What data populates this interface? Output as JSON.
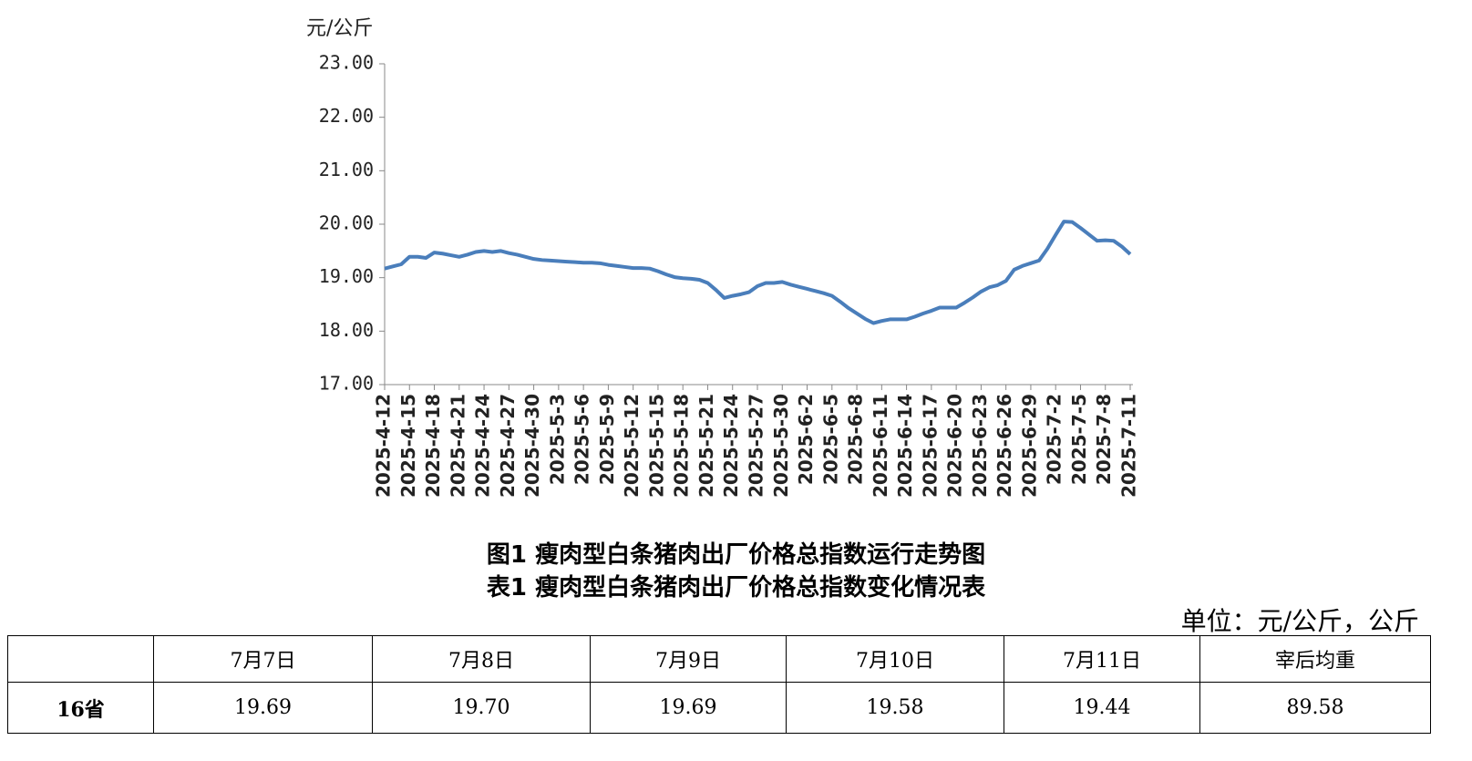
{
  "chart_data": {
    "type": "line",
    "y_label": "元/公斤",
    "categories": [
      "2025-4-12",
      null,
      null,
      "2025-4-15",
      null,
      null,
      "2025-4-18",
      null,
      null,
      "2025-4-21",
      null,
      null,
      "2025-4-24",
      null,
      null,
      "2025-4-27",
      null,
      null,
      "2025-4-30",
      null,
      null,
      "2025-5-3",
      null,
      null,
      "2025-5-6",
      null,
      null,
      "2025-5-9",
      null,
      null,
      "2025-5-12",
      null,
      null,
      "2025-5-15",
      null,
      null,
      "2025-5-18",
      null,
      null,
      "2025-5-21",
      null,
      null,
      "2025-5-24",
      null,
      null,
      "2025-5-27",
      null,
      null,
      "2025-5-30",
      null,
      null,
      "2025-6-2",
      null,
      null,
      "2025-6-5",
      null,
      null,
      "2025-6-8",
      null,
      null,
      "2025-6-11",
      null,
      null,
      "2025-6-14",
      null,
      null,
      "2025-6-17",
      null,
      null,
      "2025-6-20",
      null,
      null,
      "2025-6-23",
      null,
      null,
      "2025-6-26",
      null,
      null,
      "2025-6-29",
      null,
      null,
      "2025-7-2",
      null,
      null,
      "2025-7-5",
      null,
      null,
      "2025-7-8",
      null,
      null,
      "2025-7-11"
    ],
    "values": [
      19.17,
      19.21,
      19.25,
      19.39,
      19.39,
      19.37,
      19.47,
      19.45,
      19.42,
      19.39,
      19.43,
      19.48,
      19.5,
      19.48,
      19.5,
      19.46,
      19.43,
      19.39,
      19.35,
      19.33,
      19.32,
      19.31,
      19.3,
      19.29,
      19.28,
      19.28,
      19.27,
      19.24,
      19.22,
      19.2,
      19.18,
      19.18,
      19.17,
      19.12,
      19.06,
      19.01,
      18.99,
      18.98,
      18.96,
      18.9,
      18.77,
      18.62,
      18.66,
      18.69,
      18.73,
      18.84,
      18.9,
      18.9,
      18.92,
      18.87,
      18.83,
      18.79,
      18.75,
      18.71,
      18.66,
      18.55,
      18.43,
      18.33,
      18.23,
      18.15,
      18.19,
      18.22,
      18.22,
      18.22,
      18.27,
      18.33,
      18.38,
      18.44,
      18.44,
      18.44,
      18.53,
      18.63,
      18.74,
      18.82,
      18.86,
      18.94,
      19.15,
      19.22,
      19.27,
      19.32,
      19.54,
      19.8,
      20.05,
      20.04,
      19.93,
      19.81,
      19.69,
      19.7,
      19.69,
      19.58,
      19.44
    ],
    "color": "#4a7ebb",
    "ylim": [
      17,
      23
    ],
    "yticks": [
      {
        "value": 17,
        "label": "17.00"
      },
      {
        "value": 18,
        "label": "18.00"
      },
      {
        "value": 19,
        "label": "19.00"
      },
      {
        "value": 20,
        "label": "20.00"
      },
      {
        "value": 21,
        "label": "21.00"
      },
      {
        "value": 22,
        "label": "22.00"
      },
      {
        "value": 23,
        "label": "23.00"
      }
    ]
  },
  "figure_caption": "图1  瘦肉型白条猪肉出厂价格总指数运行走势图",
  "table_caption": "表1  瘦肉型白条猪肉出厂价格总指数变化情况表",
  "unit": "单位：元/公斤，公斤",
  "table": {
    "header": [
      "7月7日",
      "7月8日",
      "7月9日",
      "7月10日",
      "7月11日",
      "宰后均重"
    ],
    "rows": [
      [
        "16省",
        "19.69",
        "19.70",
        "19.69",
        "19.58",
        "19.44",
        "89.58"
      ]
    ]
  }
}
